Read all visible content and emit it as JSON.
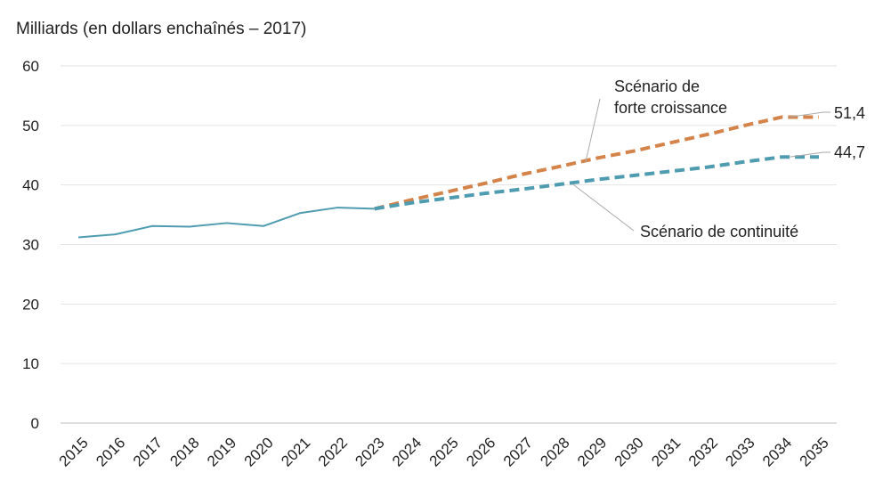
{
  "chart_data": {
    "type": "line",
    "ylabel": "Milliards (en dollars enchaînés – 2017)",
    "ylim": [
      0,
      60
    ],
    "yticks": [
      0,
      10,
      20,
      30,
      40,
      50,
      60
    ],
    "xlim": [
      2015,
      2035
    ],
    "xticks": [
      "2015",
      "2016",
      "2017",
      "2018",
      "2019",
      "2020",
      "2021",
      "2022",
      "2023",
      "2024",
      "2025",
      "2026",
      "2027",
      "2028",
      "2029",
      "2030",
      "2031",
      "2032",
      "2033",
      "2034",
      "2035"
    ],
    "grid": "horizontal",
    "series": [
      {
        "key": "historique",
        "style": "solid",
        "color": "#4f9bb0",
        "x": [
          2015,
          2016,
          2017,
          2018,
          2019,
          2020,
          2021,
          2022,
          2023
        ],
        "values": [
          31.2,
          31.7,
          33.1,
          33.0,
          33.6,
          33.1,
          35.3,
          36.2,
          36.0
        ]
      },
      {
        "key": "forte",
        "name": "Scénario de forte croissance",
        "style": "dashed",
        "color": "#d4834a",
        "x": [
          2023,
          2024,
          2025,
          2026,
          2027,
          2028,
          2029,
          2030,
          2031,
          2032,
          2033,
          2034,
          2035
        ],
        "values": [
          36.0,
          37.5,
          38.9,
          40.3,
          41.8,
          43.1,
          44.5,
          45.7,
          47.1,
          48.5,
          50.0,
          51.4,
          51.4
        ]
      },
      {
        "key": "continuite",
        "name": "Scénario de continuité",
        "style": "dashed",
        "color": "#4f9bb0",
        "x": [
          2023,
          2024,
          2025,
          2026,
          2027,
          2028,
          2029,
          2030,
          2031,
          2032,
          2033,
          2034,
          2035
        ],
        "values": [
          36.0,
          37.0,
          37.8,
          38.6,
          39.3,
          40.1,
          40.9,
          41.6,
          42.3,
          43.0,
          43.9,
          44.7,
          44.7
        ]
      }
    ],
    "annotations": {
      "forte_line1": "Scénario de",
      "forte_line2": "forte croissance",
      "continuite": "Scénario de continuité",
      "end_forte": "51,4",
      "end_continuite": "44,7"
    }
  }
}
